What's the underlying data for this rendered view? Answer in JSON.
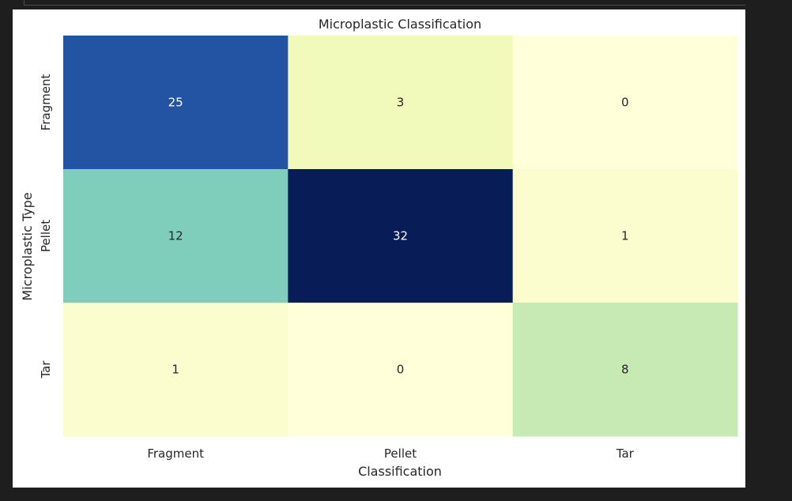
{
  "chart_data": {
    "type": "heatmap",
    "title": "Microplastic Classification",
    "xlabel": "Classification",
    "ylabel": "Microplastic Type",
    "x_categories": [
      "Fragment",
      "Pellet",
      "Tar"
    ],
    "y_categories": [
      "Fragment",
      "Pellet",
      "Tar"
    ],
    "values": [
      [
        25,
        3,
        0
      ],
      [
        12,
        32,
        1
      ],
      [
        1,
        0,
        8
      ]
    ],
    "colormap": "YlGnBu",
    "colorbar": false,
    "annotations": true,
    "grid": false
  },
  "colors": {
    "page_background": "#1e1e1e",
    "figure_background": "#ffffff",
    "text": "#262626",
    "annotation_light": "#ffffff",
    "annotation_dark": "#262626"
  }
}
